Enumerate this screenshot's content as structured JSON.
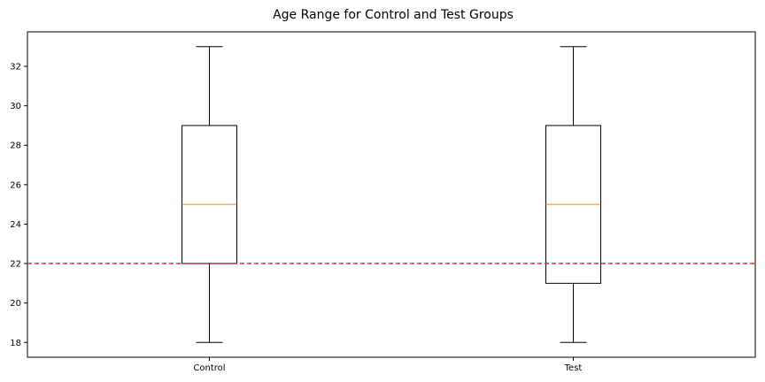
{
  "chart_data": {
    "type": "box",
    "title": "Age Range for Control and Test Groups",
    "xlabel": "",
    "ylabel": "",
    "categories": [
      "Control",
      "Test"
    ],
    "boxes": [
      {
        "name": "Control",
        "min": 18,
        "q1": 22,
        "median": 25,
        "q3": 29,
        "max": 33
      },
      {
        "name": "Test",
        "min": 18,
        "q1": 21,
        "median": 25,
        "q3": 29,
        "max": 33
      }
    ],
    "reference_line": {
      "y": 22,
      "style": "dashed",
      "color": "#e8291c"
    },
    "ylim": [
      17.25,
      33.75
    ],
    "yticks": [
      18,
      20,
      22,
      24,
      26,
      28,
      30,
      32
    ],
    "grid": false,
    "colors": {
      "box": "#000000",
      "median": "#ff7f0e",
      "reference": "#e8291c"
    }
  }
}
